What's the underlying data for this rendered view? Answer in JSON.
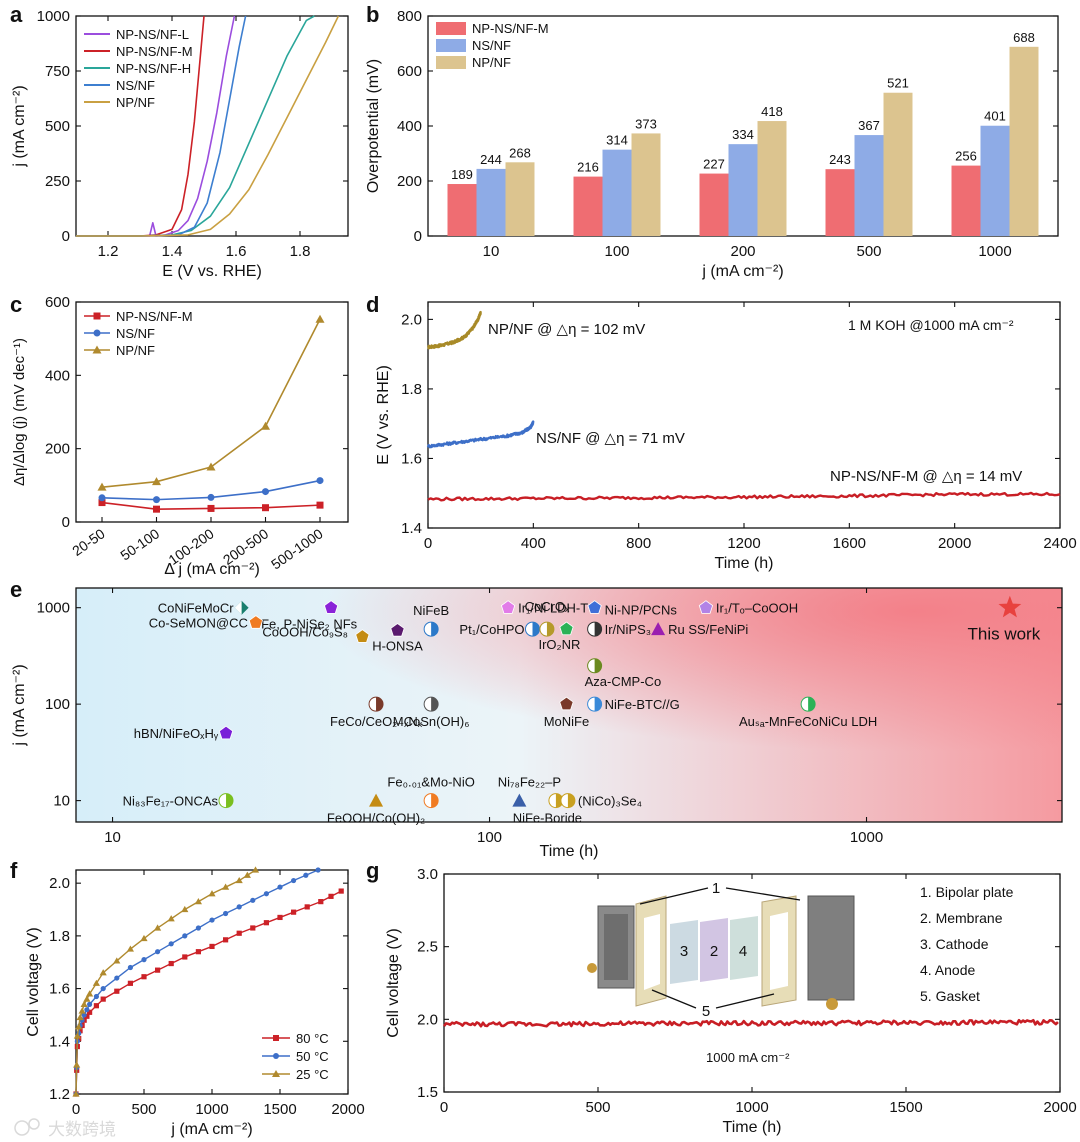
{
  "watermark": "大数跨境",
  "chart_data": [
    {
      "panel": "a",
      "type": "line",
      "xlabel": "E (V vs. RHE)",
      "ylabel": "j (mA cm⁻²)",
      "xlim": [
        1.1,
        1.95
      ],
      "ylim": [
        0,
        1000
      ],
      "xticks": [
        1.2,
        1.4,
        1.6,
        1.8
      ],
      "yticks": [
        0,
        250,
        500,
        750,
        1000
      ],
      "legend_position": "top-left",
      "series": [
        {
          "name": "NP-NS/NF-L",
          "color": "#9b4dde",
          "x": [
            1.1,
            1.3,
            1.38,
            1.42,
            1.45,
            1.48,
            1.51,
            1.54,
            1.57,
            1.595
          ],
          "y": [
            0,
            0,
            5,
            25,
            70,
            170,
            340,
            560,
            820,
            1000
          ]
        },
        {
          "name": "NP-NS/NF-M",
          "color": "#cc2127",
          "x": [
            1.1,
            1.3,
            1.35,
            1.4,
            1.43,
            1.45,
            1.47,
            1.485,
            1.5
          ],
          "y": [
            0,
            0,
            5,
            30,
            120,
            280,
            520,
            760,
            1000
          ]
        },
        {
          "name": "NP-NS/NF-H",
          "color": "#2aa69a",
          "x": [
            1.1,
            1.3,
            1.4,
            1.46,
            1.52,
            1.58,
            1.64,
            1.7,
            1.76,
            1.82,
            1.845
          ],
          "y": [
            0,
            0,
            5,
            25,
            90,
            220,
            420,
            620,
            820,
            980,
            1000
          ]
        },
        {
          "name": "NS/NF",
          "color": "#3d7fd0",
          "x": [
            1.1,
            1.3,
            1.42,
            1.47,
            1.51,
            1.55,
            1.58,
            1.61,
            1.63
          ],
          "y": [
            0,
            0,
            5,
            40,
            150,
            380,
            620,
            860,
            1000
          ]
        },
        {
          "name": "NP/NF",
          "color": "#c9a042",
          "x": [
            1.1,
            1.3,
            1.45,
            1.52,
            1.58,
            1.64,
            1.7,
            1.76,
            1.82,
            1.88,
            1.92
          ],
          "y": [
            0,
            0,
            5,
            30,
            100,
            210,
            370,
            540,
            710,
            880,
            1000
          ]
        }
      ],
      "annotation_peak": {
        "x": 1.34,
        "y": 60
      }
    },
    {
      "panel": "b",
      "type": "bar",
      "xlabel": "j (mA cm⁻²)",
      "ylabel": "Overpotential (mV)",
      "ylim": [
        0,
        800
      ],
      "yticks": [
        0,
        200,
        400,
        600,
        800
      ],
      "categories": [
        "10",
        "100",
        "200",
        "500",
        "1000"
      ],
      "legend_position": "top-left",
      "series": [
        {
          "name": "NP-NS/NF-M",
          "color": "#ef6d72",
          "values": [
            189,
            216,
            227,
            243,
            256
          ]
        },
        {
          "name": "NS/NF",
          "color": "#8eabe6",
          "values": [
            244,
            314,
            334,
            367,
            401
          ]
        },
        {
          "name": "NP/NF",
          "color": "#dcc48f",
          "values": [
            268,
            373,
            418,
            521,
            688
          ]
        }
      ]
    },
    {
      "panel": "c",
      "type": "line",
      "xlabel": "Δ j (mA cm⁻²)",
      "ylabel": "Δη/Δlog (j) (mV dec⁻¹)",
      "ylim": [
        0,
        600
      ],
      "yticks": [
        0,
        200,
        400,
        600
      ],
      "categories": [
        "20-50",
        "50-100",
        "100-200",
        "200-500",
        "500-1000"
      ],
      "legend_position": "top-left",
      "series": [
        {
          "name": "NP-NS/NF-M",
          "color": "#cc2127",
          "marker": "square",
          "values": [
            53,
            35,
            37,
            39,
            46
          ]
        },
        {
          "name": "NS/NF",
          "color": "#3d6fc8",
          "marker": "circle",
          "values": [
            66,
            61,
            67,
            83,
            113
          ]
        },
        {
          "name": "NP/NF",
          "color": "#b08a2e",
          "marker": "triangle",
          "values": [
            95,
            110,
            150,
            261,
            553
          ]
        }
      ]
    },
    {
      "panel": "d",
      "type": "line",
      "xlabel": "Time (h)",
      "ylabel": "E (V vs. RHE)",
      "xlim": [
        0,
        2400
      ],
      "ylim": [
        1.4,
        2.05
      ],
      "xticks": [
        0,
        400,
        800,
        1200,
        1600,
        2000,
        2400
      ],
      "yticks": [
        1.4,
        1.6,
        1.8,
        2.0
      ],
      "condition_label": "1 M KOH @1000 mA cm⁻²",
      "series": [
        {
          "name": "NP/NF @ △η = 102 mV",
          "color": "#a88a28",
          "x": [
            0,
            50,
            100,
            140,
            170,
            190,
            200
          ],
          "y": [
            1.92,
            1.925,
            1.935,
            1.95,
            1.975,
            2.0,
            2.02
          ]
        },
        {
          "name": "NS/NF @ △η = 71 mV",
          "color": "#3d6fc8",
          "x": [
            0,
            100,
            200,
            300,
            360,
            390,
            400
          ],
          "y": [
            1.635,
            1.645,
            1.655,
            1.665,
            1.675,
            1.69,
            1.705
          ]
        },
        {
          "name": "NP-NS/NF-M @ △η = 14 mV",
          "color": "#c81e25",
          "x": [
            0,
            400,
            800,
            1200,
            1600,
            2000,
            2400
          ],
          "y": [
            1.483,
            1.485,
            1.487,
            1.489,
            1.492,
            1.497,
            1.497
          ]
        }
      ]
    },
    {
      "panel": "e",
      "type": "scatter",
      "xlabel": "Time (h)",
      "ylabel": "j (mA cm⁻²)",
      "xscale": "log",
      "yscale": "log",
      "xlim": [
        8,
        3300
      ],
      "ylim": [
        6,
        1600
      ],
      "xticks": [
        10,
        100,
        1000
      ],
      "yticks": [
        10,
        100,
        1000
      ],
      "points": [
        {
          "label": "CoNiFeMoCr",
          "x": 22,
          "y": 1000,
          "color": "#1a7f6e",
          "shape": "diamond"
        },
        {
          "label": "Fe, P-NiSe₂ NFs",
          "x": 38,
          "y": 1000,
          "color": "#8a22d8",
          "shape": "pentagon"
        },
        {
          "label": "NiFeB",
          "x": 70,
          "y": 600,
          "color": "#2c79c9",
          "shape": "half"
        },
        {
          "label": "Ir₁/Ni LDH-T",
          "x": 112,
          "y": 1000,
          "color": "#e27ce8",
          "shape": "pentagon"
        },
        {
          "label": "Ni-NP/PCNs",
          "x": 190,
          "y": 1000,
          "color": "#3f6fd8",
          "shape": "pentagon"
        },
        {
          "label": "Ir₁/Tₒ–CoOOH",
          "x": 375,
          "y": 1000,
          "color": "#b283e6",
          "shape": "pentagon"
        },
        {
          "label": "Co-SeMON@CC",
          "x": 24,
          "y": 700,
          "color": "#f07b22",
          "shape": "pentagon"
        },
        {
          "label": "CoOOH/Co₉S₈",
          "x": 46,
          "y": 500,
          "color": "#c48c13",
          "shape": "pentagon"
        },
        {
          "label": "H-ONSA",
          "x": 57,
          "y": 580,
          "color": "#5a1a6e",
          "shape": "pentagon"
        },
        {
          "label": "Pt₁/CoHPO",
          "x": 130,
          "y": 600,
          "color": "#2c79c9",
          "shape": "half"
        },
        {
          "label": "CoCrOₓ",
          "x": 142,
          "y": 600,
          "color": "#b59a2a",
          "shape": "half"
        },
        {
          "label": "IrO₂NR",
          "x": 160,
          "y": 600,
          "color": "#2bb257",
          "shape": "pentagon"
        },
        {
          "label": "Ir/NiPS₃",
          "x": 190,
          "y": 600,
          "color": "#333333",
          "shape": "half"
        },
        {
          "label": "Ru SS/FeNiPi",
          "x": 280,
          "y": 600,
          "color": "#9b1fb0",
          "shape": "triangle"
        },
        {
          "label": "Aza-CMP-Co",
          "x": 190,
          "y": 250,
          "color": "#6a8a20",
          "shape": "half"
        },
        {
          "label": "FeCo/CeO₂₋ₓNₓ",
          "x": 50,
          "y": 100,
          "color": "#7a3a2a",
          "shape": "half"
        },
        {
          "label": "MCoSn(OH)₆",
          "x": 70,
          "y": 100,
          "color": "#555555",
          "shape": "half"
        },
        {
          "label": "MoNiFe",
          "x": 160,
          "y": 100,
          "color": "#7a3a2a",
          "shape": "pentagon"
        },
        {
          "label": "NiFe-BTC//G",
          "x": 190,
          "y": 100,
          "color": "#3a8ad8",
          "shape": "half"
        },
        {
          "label": "Auₛₐ-MnFeCoNiCu LDH",
          "x": 700,
          "y": 100,
          "color": "#2bb257",
          "shape": "half"
        },
        {
          "label": "hBN/NiFeOₓHᵧ",
          "x": 20,
          "y": 50,
          "color": "#7a1fd8",
          "shape": "pentagon"
        },
        {
          "label": "Ni₈₃Fe₁₇-ONCAs",
          "x": 20,
          "y": 10,
          "color": "#7abf1f",
          "shape": "half"
        },
        {
          "label": "FeOOH/Co(OH)₂",
          "x": 50,
          "y": 10,
          "color": "#c48c13",
          "shape": "triangle"
        },
        {
          "label": "Fe₀.₀₁&Mo-NiO",
          "x": 70,
          "y": 10,
          "color": "#f07b22",
          "shape": "half"
        },
        {
          "label": "Ni₇₈Fe₂₂–P",
          "x": 120,
          "y": 10,
          "color": "#3a5fa8",
          "shape": "triangle"
        },
        {
          "label": "(NiCo)₃Se₄",
          "x": 150,
          "y": 10,
          "color": "#c8a020",
          "shape": "half2"
        },
        {
          "label": "This work",
          "x": 2400,
          "y": 1000,
          "color": "#e8413e",
          "shape": "star"
        }
      ],
      "extra_labels": [
        "NiFe-Boride"
      ]
    },
    {
      "panel": "f",
      "type": "line",
      "xlabel": "j (mA cm⁻²)",
      "ylabel": "Cell voltage (V)",
      "xlim": [
        0,
        2000
      ],
      "ylim": [
        1.2,
        2.05
      ],
      "xticks": [
        0,
        500,
        1000,
        1500,
        2000
      ],
      "yticks": [
        1.2,
        1.4,
        1.6,
        1.8,
        2.0
      ],
      "legend_position": "bottom-right",
      "series": [
        {
          "name": "80 °C",
          "color": "#cc2127",
          "marker": "square",
          "x": [
            0,
            10,
            30,
            60,
            100,
            200,
            400,
            600,
            800,
            1000,
            1200,
            1400,
            1600,
            1800,
            1950
          ],
          "y": [
            1.2,
            1.38,
            1.44,
            1.48,
            1.51,
            1.56,
            1.62,
            1.67,
            1.72,
            1.76,
            1.81,
            1.85,
            1.89,
            1.93,
            1.97
          ]
        },
        {
          "name": "50 °C",
          "color": "#3d6fc8",
          "marker": "circle",
          "x": [
            0,
            10,
            30,
            60,
            100,
            200,
            400,
            600,
            800,
            1000,
            1200,
            1400,
            1600,
            1780
          ],
          "y": [
            1.2,
            1.4,
            1.46,
            1.5,
            1.54,
            1.6,
            1.68,
            1.74,
            1.8,
            1.86,
            1.91,
            1.96,
            2.01,
            2.05
          ]
        },
        {
          "name": "25 °C",
          "color": "#b08a2e",
          "marker": "triangle",
          "x": [
            0,
            10,
            30,
            60,
            100,
            200,
            400,
            600,
            800,
            1000,
            1200,
            1320
          ],
          "y": [
            1.2,
            1.42,
            1.49,
            1.54,
            1.58,
            1.66,
            1.75,
            1.83,
            1.9,
            1.96,
            2.01,
            2.05
          ]
        }
      ]
    },
    {
      "panel": "g",
      "type": "line",
      "xlabel": "Time (h)",
      "ylabel": "Cell voltage (V)",
      "xlim": [
        0,
        2000
      ],
      "ylim": [
        1.5,
        3.0
      ],
      "xticks": [
        0,
        500,
        1000,
        1500,
        2000
      ],
      "yticks": [
        1.5,
        2.0,
        2.5,
        3.0
      ],
      "condition_label": "1000 mA cm⁻²",
      "series": [
        {
          "name": "",
          "color": "#c81e25",
          "x": [
            0,
            400,
            800,
            1200,
            1600,
            2000
          ],
          "y": [
            1.965,
            1.968,
            1.972,
            1.974,
            1.978,
            1.98
          ]
        }
      ],
      "inset_labels": [
        "1",
        "5",
        "3",
        "2",
        "4"
      ],
      "components": [
        "1. Bipolar plate",
        "2. Membrane",
        "3. Cathode",
        "4. Anode",
        "5. Gasket"
      ]
    }
  ]
}
